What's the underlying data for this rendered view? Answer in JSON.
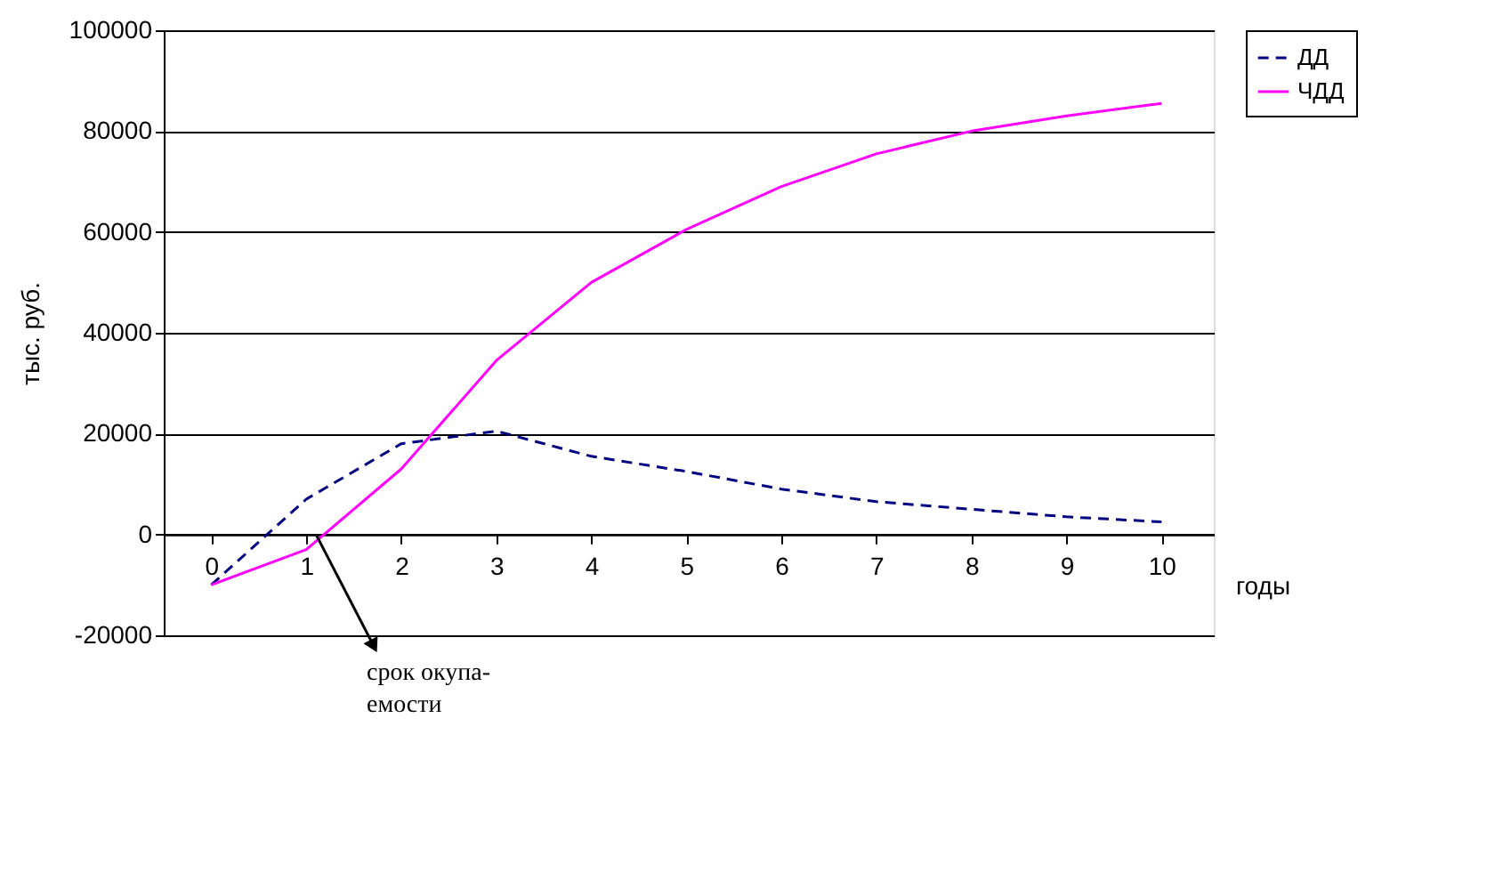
{
  "chart_data": {
    "type": "line",
    "ylabel": "тыс. руб.",
    "xlabel": "годы",
    "x": [
      0,
      1,
      2,
      3,
      4,
      5,
      6,
      7,
      8,
      9,
      10
    ],
    "xlim": [
      -0.5,
      10.55
    ],
    "xticks": [
      0,
      1,
      2,
      3,
      4,
      5,
      6,
      7,
      8,
      9,
      10
    ],
    "ylim": [
      -20000,
      100000
    ],
    "yticks": [
      -20000,
      0,
      20000,
      40000,
      60000,
      80000,
      100000
    ],
    "series": [
      {
        "name": "ДД",
        "color": "#000080",
        "line_style": "dashed",
        "values": [
          -10000,
          7000,
          18000,
          20500,
          15500,
          12500,
          9000,
          6500,
          5000,
          3500,
          2500
        ]
      },
      {
        "name": "ЧДД",
        "color": "#ff00ff",
        "line_style": "solid",
        "values": [
          -10000,
          -3000,
          13000,
          34500,
          50000,
          60500,
          69000,
          75500,
          80000,
          83000,
          85500
        ]
      }
    ],
    "grid": "y",
    "legend": "right",
    "marker": "none",
    "annotations": [
      "срок окупа-\nемости"
    ]
  }
}
